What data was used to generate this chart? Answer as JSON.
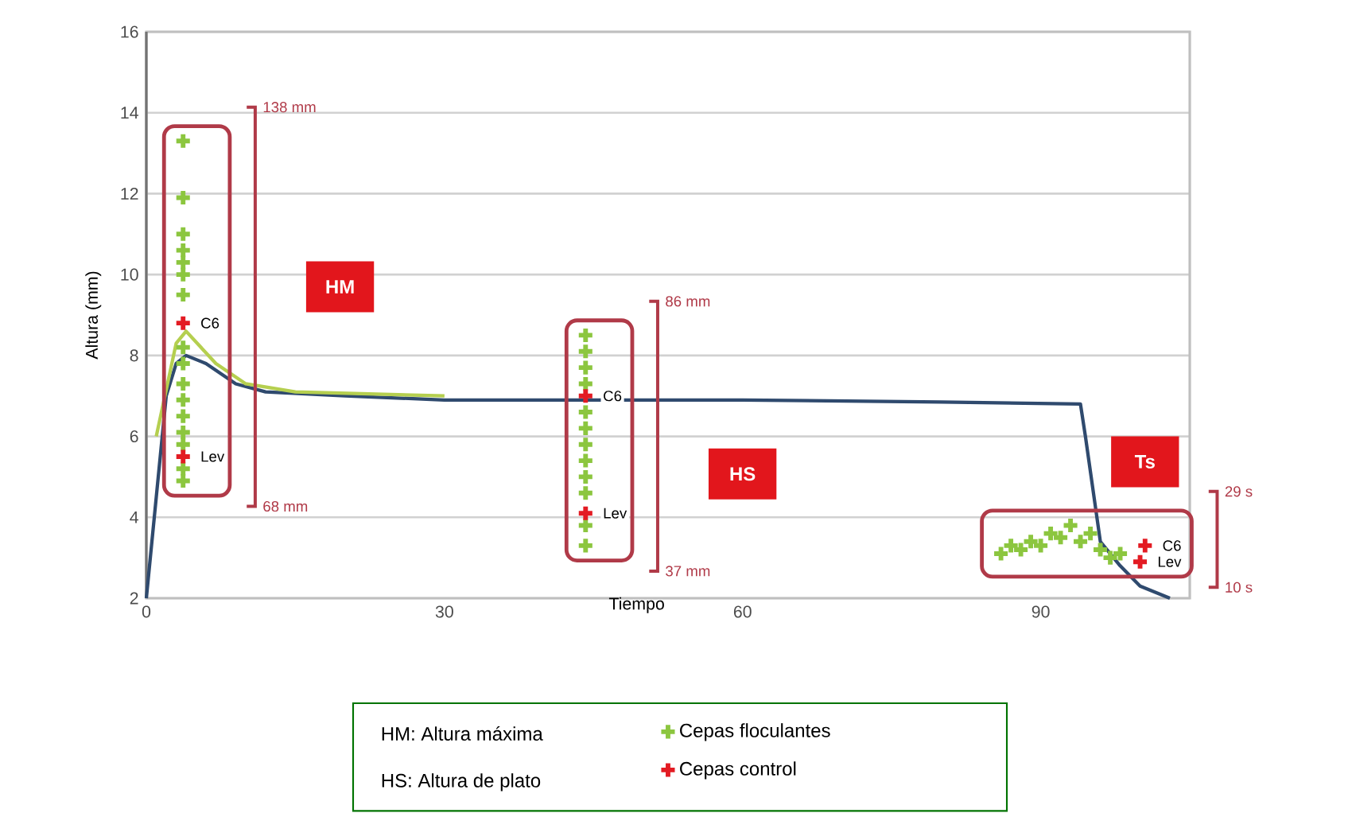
{
  "chart_data": {
    "type": "line",
    "xlabel": "Tiempo",
    "ylabel": "Altura (mm)",
    "xlim": [
      0,
      105
    ],
    "ylim": [
      2,
      16
    ],
    "xticks": [
      0,
      30,
      60,
      90
    ],
    "yticks": [
      2,
      4,
      6,
      8,
      10,
      12,
      14,
      16
    ],
    "grid": "y",
    "legend": "bottom",
    "series": [
      {
        "type": "line",
        "color": "#2f4a6e",
        "marker": "none",
        "x": [
          0,
          1,
          2,
          3,
          4,
          6,
          9,
          12,
          20,
          30,
          44,
          60,
          80,
          94,
          94.5,
          96,
          98,
          100,
          103
        ],
        "values": [
          2,
          4.5,
          7,
          7.8,
          8.0,
          7.8,
          7.3,
          7.1,
          7.0,
          6.9,
          6.9,
          6.9,
          6.85,
          6.8,
          6.0,
          3.4,
          2.8,
          2.3,
          2.0
        ]
      },
      {
        "type": "line",
        "color": "#b5cf4f",
        "marker": "none",
        "x": [
          1,
          3,
          4,
          7,
          10,
          15,
          30
        ],
        "values": [
          6,
          8.3,
          8.6,
          7.8,
          7.3,
          7.1,
          7.0
        ]
      },
      {
        "type": "scatter",
        "name": "Cepas floculantes",
        "color": "#8cc63f",
        "marker": "cross",
        "x": [
          3.7,
          3.7,
          3.7,
          3.7,
          3.7,
          3.7,
          3.7,
          3.7,
          3.7,
          3.7,
          3.7,
          3.7,
          3.7,
          3.7,
          3.7,
          3.7,
          44.2,
          44.2,
          44.2,
          44.2,
          44.2,
          44.2,
          44.2,
          44.2,
          44.2,
          44.2,
          44.2,
          44.2,
          86,
          87,
          88,
          89,
          90,
          91,
          92,
          93,
          94,
          95,
          96,
          97,
          98
        ],
        "values": [
          13.3,
          11.9,
          11.0,
          10.6,
          10.3,
          10.0,
          9.5,
          8.2,
          7.8,
          7.3,
          6.9,
          6.5,
          6.1,
          5.8,
          5.2,
          4.9,
          8.5,
          8.1,
          7.7,
          7.3,
          6.6,
          6.2,
          5.8,
          5.4,
          5.0,
          4.6,
          3.8,
          3.3,
          3.1,
          3.3,
          3.2,
          3.4,
          3.3,
          3.6,
          3.5,
          3.8,
          3.4,
          3.6,
          3.2,
          3.0,
          3.1
        ]
      },
      {
        "type": "scatter",
        "name": "Cepas control",
        "color": "#e31b23",
        "marker": "cross",
        "x": [
          3.7,
          3.7,
          44.2,
          44.2,
          100.5,
          100
        ],
        "values": [
          8.8,
          5.5,
          7.0,
          4.1,
          3.3,
          2.9
        ]
      }
    ],
    "annotations": [
      "HM",
      "HS",
      "Ts",
      {
        "text": "C6",
        "x": 3.7,
        "y": 8.8
      },
      {
        "text": "Lev",
        "x": 3.7,
        "y": 5.5
      },
      {
        "text": "C6",
        "x": 44.2,
        "y": 7.0
      },
      {
        "text": "Lev",
        "x": 44.2,
        "y": 4.1
      },
      {
        "text": "C6",
        "x": 100.5,
        "y": 3.3
      },
      {
        "text": "Lev",
        "x": 100,
        "y": 2.9
      },
      "138 mm",
      "68 mm",
      "86 mm",
      "37 mm",
      "29 s",
      "10 s",
      "HM: Altura máxima",
      "HS: Altura de plato"
    ]
  }
}
